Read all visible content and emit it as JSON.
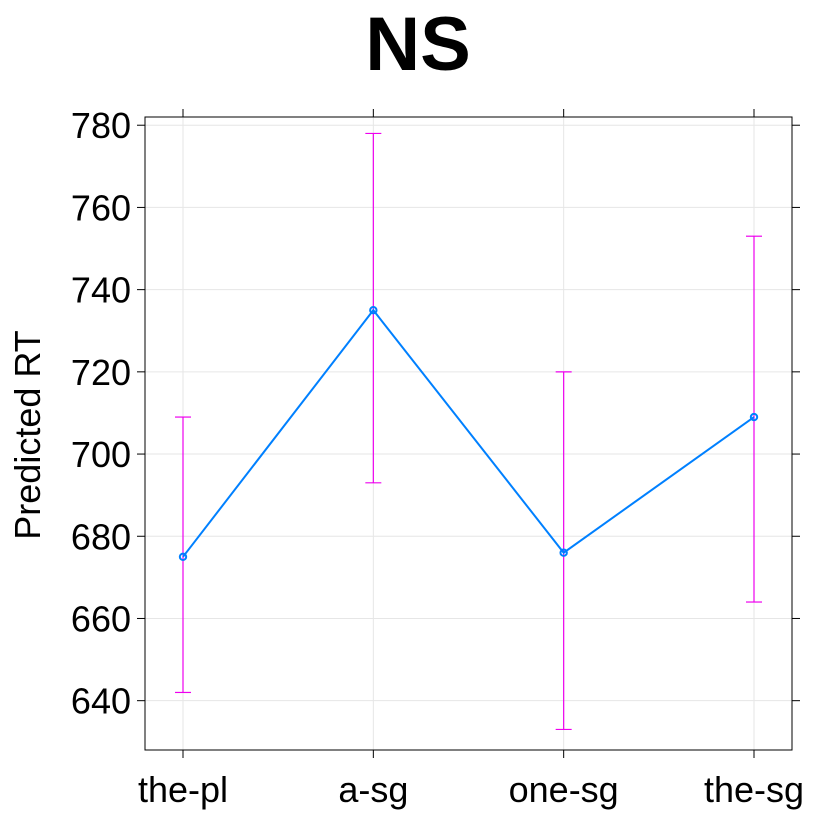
{
  "chart_data": {
    "type": "line",
    "title": "NS",
    "xlabel": "",
    "ylabel": "Predicted RT",
    "categories": [
      "the-pl",
      "a-sg",
      "one-sg",
      "the-sg"
    ],
    "series": [
      {
        "values": [
          675,
          735,
          676,
          709
        ],
        "lower": [
          642,
          693,
          633,
          664
        ],
        "upper": [
          709,
          778,
          720,
          753
        ]
      }
    ],
    "ylim": [
      628,
      782
    ],
    "yticks": [
      640,
      660,
      680,
      700,
      720,
      740,
      760,
      780
    ],
    "grid": true,
    "colors": {
      "line": "#0080ff",
      "errorbar": "#ee00ee"
    }
  }
}
